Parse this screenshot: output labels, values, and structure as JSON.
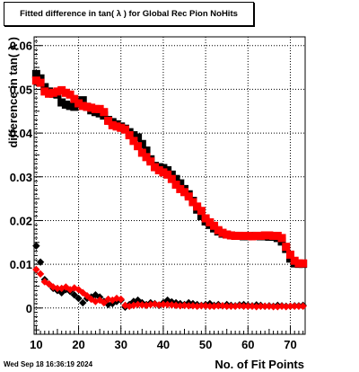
{
  "title": "Fitted difference in tan( λ ) for Global Rec Pion NoHits",
  "datestamp": "Wed Sep 18 16:36:19 2024",
  "colors": {
    "series_black": "#000000",
    "series_red": "#ff0000",
    "grid": "#000000",
    "background": "#ffffff"
  },
  "chart_data": {
    "type": "scatter",
    "title": "Fitted difference in tan( λ ) for Global Rec Pion NoHits",
    "xlabel": "No. of Fit Points",
    "ylabel": "difference in tan( λ )",
    "xlim": [
      9.5,
      73.5
    ],
    "ylim": [
      -0.006,
      0.062
    ],
    "x_ticks": [
      10,
      20,
      30,
      40,
      50,
      60,
      70
    ],
    "y_ticks": [
      0,
      0.01,
      0.02,
      0.03,
      0.04,
      0.05,
      0.06
    ],
    "y_tick_labels": [
      "0",
      "0.01",
      "0.02",
      "0.03",
      "0.04",
      "0.05",
      "0.06"
    ],
    "grid": true,
    "legend": "none",
    "series": [
      {
        "color": "#000000",
        "marker": "square",
        "x": [
          10,
          11,
          12,
          13,
          14,
          15,
          16,
          17,
          18,
          19,
          20,
          21,
          22,
          23,
          24,
          25,
          26,
          27,
          28,
          29,
          30,
          31,
          32,
          33,
          34,
          35,
          36,
          37,
          38,
          39,
          40,
          41,
          42,
          43,
          44,
          45,
          46,
          47,
          48,
          49,
          50,
          51,
          52,
          53,
          54,
          55,
          56,
          57,
          58,
          59,
          60,
          61,
          62,
          63,
          64,
          65,
          66,
          67,
          68,
          69,
          70,
          71,
          72,
          73
        ],
        "y": [
          0.0535,
          0.0525,
          0.0505,
          0.0495,
          0.049,
          0.0488,
          0.047,
          0.0465,
          0.0462,
          0.046,
          0.0472,
          0.0475,
          0.046,
          0.0452,
          0.0448,
          0.0445,
          0.044,
          0.043,
          0.0425,
          0.042,
          0.0415,
          0.041,
          0.0402,
          0.0395,
          0.039,
          0.0375,
          0.036,
          0.034,
          0.0325,
          0.0322,
          0.032,
          0.0315,
          0.0305,
          0.0295,
          0.0285,
          0.0272,
          0.026,
          0.0245,
          0.0225,
          0.021,
          0.0198,
          0.019,
          0.0182,
          0.0175,
          0.017,
          0.0168,
          0.0166,
          0.0165,
          0.0165,
          0.0164,
          0.0164,
          0.0165,
          0.0165,
          0.0164,
          0.0164,
          0.0163,
          0.0163,
          0.016,
          0.0152,
          0.0135,
          0.0113,
          0.0102,
          0.0101,
          0.0101
        ]
      },
      {
        "color": "#ff0000",
        "marker": "square",
        "x": [
          10,
          11,
          12,
          13,
          14,
          15,
          16,
          17,
          18,
          19,
          20,
          21,
          22,
          23,
          24,
          25,
          26,
          27,
          28,
          29,
          30,
          31,
          32,
          33,
          34,
          35,
          36,
          37,
          38,
          39,
          40,
          41,
          42,
          43,
          44,
          45,
          46,
          47,
          48,
          49,
          50,
          51,
          52,
          53,
          54,
          55,
          56,
          57,
          58,
          59,
          60,
          61,
          62,
          63,
          64,
          65,
          66,
          67,
          68,
          69,
          70,
          71,
          72,
          73
        ],
        "y": [
          0.052,
          0.0515,
          0.0495,
          0.049,
          0.0492,
          0.0495,
          0.0498,
          0.0492,
          0.0488,
          0.0478,
          0.0468,
          0.0462,
          0.046,
          0.0458,
          0.0455,
          0.0455,
          0.0448,
          0.0428,
          0.0418,
          0.0415,
          0.0412,
          0.0408,
          0.0395,
          0.0382,
          0.037,
          0.0355,
          0.0345,
          0.0335,
          0.0322,
          0.0315,
          0.031,
          0.0305,
          0.0295,
          0.0282,
          0.0272,
          0.0265,
          0.0255,
          0.0242,
          0.0232,
          0.0222,
          0.0205,
          0.0196,
          0.0188,
          0.0178,
          0.0172,
          0.0168,
          0.0166,
          0.0165,
          0.0165,
          0.0165,
          0.0165,
          0.0164,
          0.0165,
          0.0165,
          0.0166,
          0.0166,
          0.0165,
          0.0165,
          0.016,
          0.014,
          0.0122,
          0.0108,
          0.0102,
          0.0102
        ]
      },
      {
        "color": "#000000",
        "marker": "diamond",
        "x": [
          10,
          11,
          12,
          13,
          14,
          15,
          16,
          17,
          18,
          19,
          20,
          21,
          22,
          23,
          24,
          25,
          26,
          27,
          28,
          29,
          30,
          31,
          32,
          33,
          34,
          35,
          36,
          37,
          38,
          39,
          40,
          41,
          42,
          43,
          44,
          45,
          46,
          47,
          48,
          49,
          50,
          51,
          52,
          53,
          54,
          55,
          56,
          57,
          58,
          59,
          60,
          61,
          62,
          63,
          64,
          65,
          66,
          67,
          68,
          69,
          70,
          71,
          72,
          73
        ],
        "y": [
          0.0142,
          0.0105,
          0.0065,
          0.0055,
          0.0045,
          0.004,
          0.0035,
          0.0042,
          0.0038,
          0.003,
          0.0022,
          0.0012,
          0.0022,
          0.0025,
          0.003,
          0.0025,
          0.0015,
          0.0008,
          0.001,
          0.0015,
          0.0018,
          0.0002,
          0.0008,
          0.0015,
          0.0018,
          0.0012,
          0.0008,
          0.0012,
          0.001,
          0.0006,
          0.0012,
          0.0018,
          0.0014,
          0.0012,
          0.001,
          0.0008,
          0.0012,
          0.001,
          0.0008,
          0.0006,
          0.0008,
          0.001,
          0.0006,
          0.0008,
          0.0005,
          0.0008,
          0.0006,
          0.0005,
          0.0007,
          0.0008,
          0.0006,
          0.0005,
          0.0007,
          0.0006,
          0.0004,
          0.0005,
          0.0004,
          0.0006,
          0.0005,
          0.0004,
          0.0004,
          0.0005,
          0.0005,
          0.0006
        ]
      },
      {
        "color": "#ff0000",
        "marker": "diamond",
        "x": [
          10,
          11,
          12,
          13,
          14,
          15,
          16,
          17,
          18,
          19,
          20,
          21,
          22,
          23,
          24,
          25,
          26,
          27,
          28,
          29,
          30,
          31,
          32,
          33,
          34,
          35,
          36,
          37,
          38,
          39,
          40,
          41,
          42,
          43,
          44,
          45,
          46,
          47,
          48,
          49,
          50,
          51,
          52,
          53,
          54,
          55,
          56,
          57,
          58,
          59,
          60,
          61,
          62,
          63,
          64,
          65,
          66,
          67,
          68,
          69,
          70,
          71,
          72,
          73
        ],
        "y": [
          0.0088,
          0.0078,
          0.006,
          0.0055,
          0.0048,
          0.0045,
          0.0045,
          0.0048,
          0.0042,
          0.0046,
          0.0042,
          0.0035,
          0.0028,
          0.002,
          0.0015,
          0.0018,
          0.0012,
          0.002,
          0.0018,
          0.0022,
          0.002,
          0.0006,
          0.0004,
          0.0006,
          0.0008,
          0.0007,
          0.0006,
          0.0008,
          0.0009,
          0.0007,
          0.0008,
          0.0008,
          0.0007,
          0.0006,
          0.0005,
          0.0006,
          0.0005,
          0.0005,
          0.0004,
          0.0005,
          0.0005,
          0.0004,
          0.0004,
          0.0005,
          0.0005,
          0.0004,
          0.0004,
          0.0004,
          0.0005,
          0.0004,
          0.0004,
          0.0004,
          0.0003,
          0.0004,
          0.0004,
          0.0004,
          0.0003,
          0.0003,
          0.0004,
          0.0003,
          0.0004,
          0.0004,
          0.0004,
          0.0004
        ]
      }
    ]
  }
}
